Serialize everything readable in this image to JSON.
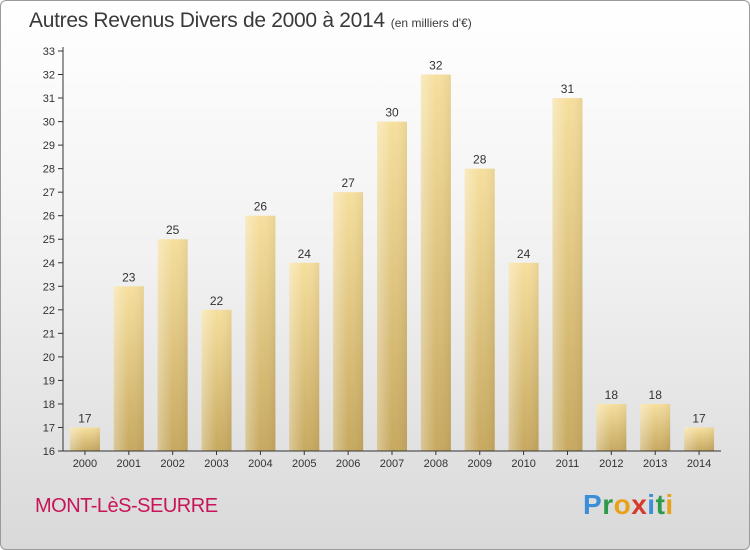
{
  "header": {
    "title": "Autres Revenus Divers de 2000 à 2014",
    "subtitle": "(en milliers d'€)"
  },
  "footer": {
    "location": "MONT-LèS-SEURRE",
    "brand_letters": [
      "P",
      "r",
      "o",
      "x",
      "i",
      "t",
      "i"
    ],
    "brand_colors": [
      "#3b8ed8",
      "#2f9a4a",
      "#e8a21a",
      "#d63a2a",
      "#3b8ed8",
      "#2f9a4a",
      "#e8a21a"
    ]
  },
  "colors": {
    "bar_top": "#f6df9e",
    "bar_bottom": "#c7a960",
    "axis": "#333333",
    "grid": "#cfcfcf",
    "title_text": "#3a3a3a",
    "location_text": "#c8145a"
  },
  "chart_data": {
    "type": "bar",
    "categories": [
      "2000",
      "2001",
      "2002",
      "2003",
      "2004",
      "2005",
      "2006",
      "2007",
      "2008",
      "2009",
      "2010",
      "2011",
      "2012",
      "2013",
      "2014"
    ],
    "values": [
      17,
      23,
      25,
      22,
      26,
      24,
      27,
      30,
      32,
      28,
      24,
      31,
      18,
      18,
      17
    ],
    "ylim": [
      16,
      33
    ],
    "yticks": [
      16,
      17,
      18,
      19,
      20,
      21,
      22,
      23,
      24,
      25,
      26,
      27,
      28,
      29,
      30,
      31,
      32,
      33
    ],
    "data_labels": true,
    "grid": false,
    "xlabel": "",
    "ylabel": ""
  }
}
